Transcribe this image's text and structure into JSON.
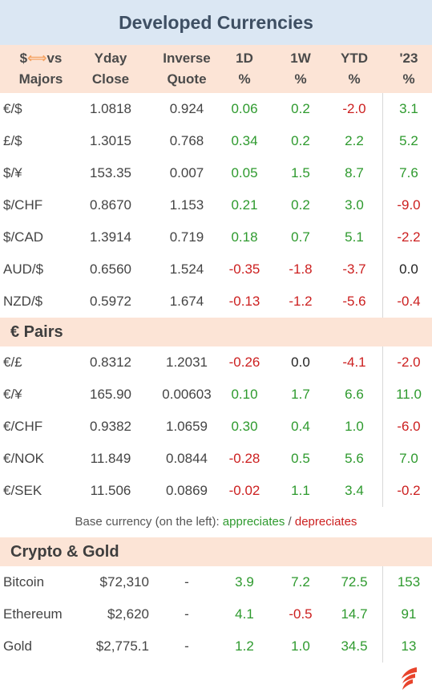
{
  "title": "Developed Currencies",
  "header": {
    "col1_line1_a": "$",
    "col1_arrow": "⟺",
    "col1_line1_b": "vs",
    "col1_line2": "Majors",
    "col2_line1": "Yday",
    "col2_line2": "Close",
    "col3_line1": "Inverse",
    "col3_line2": "Quote",
    "col4_line1": "1D",
    "col4_line2": "%",
    "col5_line1": "1W",
    "col5_line2": "%",
    "col6_line1": "YTD",
    "col6_line2": "%",
    "col7_line1": "'23",
    "col7_line2": "%"
  },
  "majors": [
    {
      "pair": "€/$",
      "close": "1.0818",
      "inverse": "0.924",
      "d1": "0.06",
      "w1": "0.2",
      "ytd": "-2.0",
      "y23": "3.1"
    },
    {
      "pair": "£/$",
      "close": "1.3015",
      "inverse": "0.768",
      "d1": "0.34",
      "w1": "0.2",
      "ytd": "2.2",
      "y23": "5.2"
    },
    {
      "pair": "$/¥",
      "close": "153.35",
      "inverse": "0.007",
      "d1": "0.05",
      "w1": "1.5",
      "ytd": "8.7",
      "y23": "7.6"
    },
    {
      "pair": "$/CHF",
      "close": "0.8670",
      "inverse": "1.153",
      "d1": "0.21",
      "w1": "0.2",
      "ytd": "3.0",
      "y23": "-9.0"
    },
    {
      "pair": "$/CAD",
      "close": "1.3914",
      "inverse": "0.719",
      "d1": "0.18",
      "w1": "0.7",
      "ytd": "5.1",
      "y23": "-2.2"
    },
    {
      "pair": "AUD/$",
      "close": "0.6560",
      "inverse": "1.524",
      "d1": "-0.35",
      "w1": "-1.8",
      "ytd": "-3.7",
      "y23": "0.0"
    },
    {
      "pair": "NZD/$",
      "close": "0.5972",
      "inverse": "1.674",
      "d1": "-0.13",
      "w1": "-1.2",
      "ytd": "-5.6",
      "y23": "-0.4"
    }
  ],
  "euro_section_title": "€ Pairs",
  "euro_pairs": [
    {
      "pair": "€/£",
      "close": "0.8312",
      "inverse": "1.2031",
      "d1": "-0.26",
      "w1": "0.0",
      "ytd": "-4.1",
      "y23": "-2.0"
    },
    {
      "pair": "€/¥",
      "close": "165.90",
      "inverse": "0.00603",
      "d1": "0.10",
      "w1": "1.7",
      "ytd": "6.6",
      "y23": "11.0"
    },
    {
      "pair": "€/CHF",
      "close": "0.9382",
      "inverse": "1.0659",
      "d1": "0.30",
      "w1": "0.4",
      "ytd": "1.0",
      "y23": "-6.0"
    },
    {
      "pair": "€/NOK",
      "close": "11.849",
      "inverse": "0.0844",
      "d1": "-0.28",
      "w1": "0.5",
      "ytd": "5.6",
      "y23": "7.0"
    },
    {
      "pair": "€/SEK",
      "close": "11.506",
      "inverse": "0.0869",
      "d1": "-0.02",
      "w1": "1.1",
      "ytd": "3.4",
      "y23": "-0.2"
    }
  ],
  "note": {
    "prefix": "Base currency (on the left): ",
    "appreciates": "appreciates",
    "sep": " / ",
    "depreciates": "depreciates"
  },
  "crypto_section_title": "Crypto & Gold",
  "crypto": [
    {
      "name": "Bitcoin",
      "close": "$72,310",
      "inverse": "-",
      "d1": "3.9",
      "w1": "7.2",
      "ytd": "72.5",
      "y23": "153"
    },
    {
      "name": "Ethereum",
      "close": "$2,620",
      "inverse": "-",
      "d1": "4.1",
      "w1": "-0.5",
      "ytd": "14.7",
      "y23": "91"
    },
    {
      "name": "Gold",
      "close": "$2,775.1",
      "inverse": "-",
      "d1": "1.2",
      "w1": "1.0",
      "ytd": "34.5",
      "y23": "13"
    }
  ],
  "colors": {
    "positive": "#2e9a2e",
    "negative": "#cc1f1f",
    "title_bg": "#dbe7f3",
    "header_bg": "#fce4d6",
    "logo": "#e8432b"
  },
  "logo_icon": "flame-logo-icon"
}
